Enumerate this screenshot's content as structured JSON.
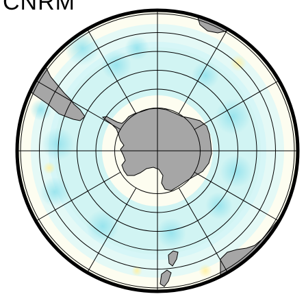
{
  "title": "CNRM",
  "map": {
    "projection": "south-polar-stereographic",
    "center": "South Pole",
    "field_palette": {
      "ocean_base": "#fdfdf0",
      "light_cyan": "#c2f0f4",
      "cyan": "#8fe1ec",
      "pale_yellow": "#fff5b0",
      "land": "#a6a6a6",
      "coastline": "#000000",
      "graticule": "#000000",
      "frame": "#000000"
    },
    "graticule": {
      "latitude_circles": 6,
      "meridian_count": 12
    },
    "landmasses": [
      "antarctica",
      "south-america",
      "africa",
      "australia",
      "new-zealand"
    ]
  }
}
